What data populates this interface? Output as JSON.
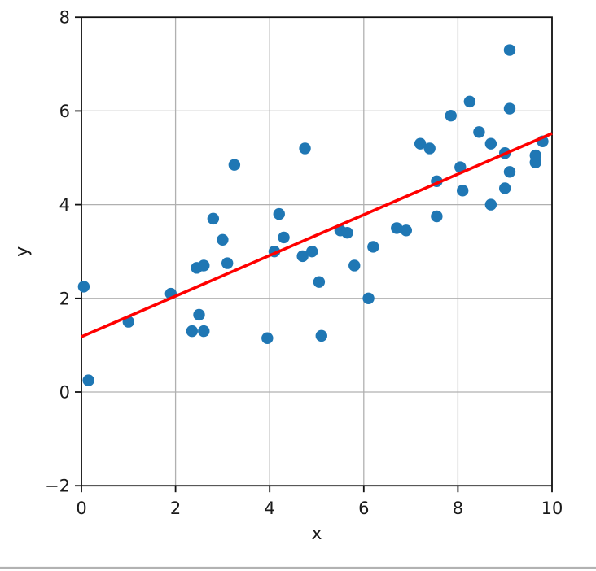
{
  "chart_data": {
    "type": "scatter",
    "title": "",
    "xlabel": "x",
    "ylabel": "y",
    "xlim": [
      0,
      10
    ],
    "ylim": [
      -2,
      8
    ],
    "grid": true,
    "legend_position": "none",
    "xticks": {
      "values": [
        0,
        2,
        4,
        6,
        8,
        10
      ],
      "labels": [
        "0",
        "2",
        "4",
        "6",
        "8",
        "10"
      ]
    },
    "yticks": {
      "values": [
        -2,
        0,
        2,
        4,
        6,
        8
      ],
      "labels": [
        "−2",
        "0",
        "2",
        "4",
        "6",
        "8"
      ]
    },
    "marker_color": "#1f77b4",
    "line_color": "#ff0000",
    "grid_color": "#b0b0b0",
    "spine_color": "#111111",
    "points": [
      [
        0.05,
        2.25
      ],
      [
        0.15,
        0.25
      ],
      [
        1.0,
        1.5
      ],
      [
        1.9,
        2.1
      ],
      [
        2.35,
        1.3
      ],
      [
        2.5,
        1.65
      ],
      [
        2.6,
        1.3
      ],
      [
        2.45,
        2.65
      ],
      [
        2.6,
        2.7
      ],
      [
        2.8,
        3.7
      ],
      [
        3.0,
        3.25
      ],
      [
        3.1,
        2.75
      ],
      [
        3.25,
        4.85
      ],
      [
        3.95,
        1.15
      ],
      [
        4.1,
        3.0
      ],
      [
        4.2,
        3.8
      ],
      [
        4.3,
        3.3
      ],
      [
        4.7,
        2.9
      ],
      [
        4.75,
        5.2
      ],
      [
        4.9,
        3.0
      ],
      [
        5.05,
        2.35
      ],
      [
        5.1,
        1.2
      ],
      [
        5.5,
        3.45
      ],
      [
        5.65,
        3.4
      ],
      [
        5.8,
        2.7
      ],
      [
        6.1,
        2.0
      ],
      [
        6.2,
        3.1
      ],
      [
        6.7,
        3.5
      ],
      [
        6.9,
        3.45
      ],
      [
        7.2,
        5.3
      ],
      [
        7.4,
        5.2
      ],
      [
        7.55,
        4.5
      ],
      [
        7.55,
        3.75
      ],
      [
        7.85,
        5.9
      ],
      [
        8.05,
        4.8
      ],
      [
        8.1,
        4.3
      ],
      [
        8.25,
        6.2
      ],
      [
        8.45,
        5.55
      ],
      [
        8.7,
        5.3
      ],
      [
        8.7,
        4.0
      ],
      [
        9.0,
        4.35
      ],
      [
        9.0,
        5.1
      ],
      [
        9.1,
        4.7
      ],
      [
        9.1,
        6.05
      ],
      [
        9.1,
        7.3
      ],
      [
        9.65,
        4.9
      ],
      [
        9.65,
        5.05
      ],
      [
        9.8,
        5.35
      ]
    ],
    "fit_line": {
      "x": [
        0,
        10
      ],
      "y": [
        1.18,
        5.52
      ]
    }
  },
  "window": {
    "separator_color": "#b2b2b2"
  }
}
